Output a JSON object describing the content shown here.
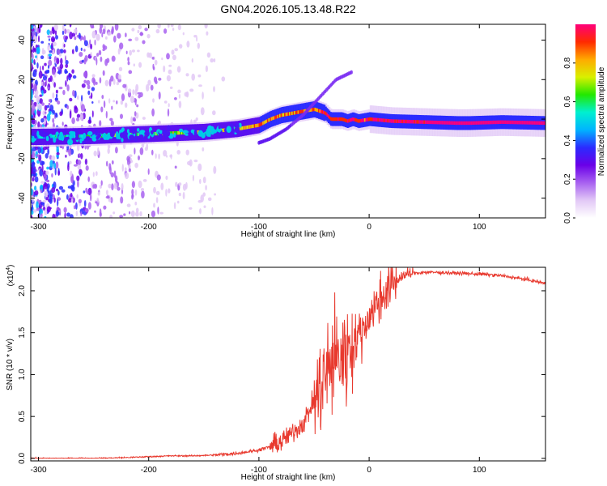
{
  "chart_data": [
    {
      "type": "heatmap",
      "title": "GN04.2026.105.13.48.R22",
      "xlabel": "Height of straight line (km)",
      "ylabel": "Frequency (Hz)",
      "xlim": [
        -307,
        160
      ],
      "ylim": [
        -50,
        48
      ],
      "xticks": [
        -300,
        -200,
        -100,
        0,
        100
      ],
      "xtick_labels": [
        "-300",
        "-200",
        "-100",
        "0",
        "100"
      ],
      "yticks": [
        -40,
        -20,
        0,
        20,
        40
      ],
      "ytick_labels": [
        "-40",
        "-20",
        "0",
        "20",
        "40"
      ],
      "ridge": {
        "description": "frequency centre of the main spectral band vs height",
        "x": [
          -300,
          -250,
          -200,
          -150,
          -120,
          -100,
          -90,
          -80,
          -70,
          -60,
          -50,
          -40,
          -35,
          -25,
          -20,
          -15,
          -10,
          0,
          20,
          50,
          80,
          90,
          120,
          160
        ],
        "y": [
          -9,
          -8.5,
          -7.5,
          -6.5,
          -5,
          -3,
          0,
          2,
          3,
          4,
          5,
          3,
          0,
          0,
          -1,
          0,
          -1,
          0,
          -1,
          -1.5,
          -2,
          -2,
          -1.5,
          -2
        ]
      },
      "secondary_branch": {
        "description": "weaker branch drifting from low to high frequency",
        "x": [
          -100,
          -90,
          -75,
          -60,
          -50,
          -40,
          -30,
          -15
        ],
        "y": [
          -12,
          -10,
          -5,
          2,
          8,
          14,
          20,
          24
        ]
      },
      "colorbar": {
        "label": "Normalized spectral amplitude",
        "range": [
          0,
          1
        ],
        "ticks": [
          0.0,
          0.2,
          0.4,
          0.6,
          0.8
        ],
        "tick_labels": [
          "0.0",
          "0.2",
          "0.4",
          "0.6",
          "0.8"
        ],
        "colors": [
          "#ffffff",
          "#e2c8f6",
          "#a861f0",
          "#6a00e8",
          "#2b2bff",
          "#00b4ff",
          "#00f0d0",
          "#22e800",
          "#d9f000",
          "#ffaa00",
          "#ff2a00",
          "#ff007a"
        ]
      }
    },
    {
      "type": "line",
      "title": "",
      "xlabel": "Height of straight line (km)",
      "ylabel": "SNR (10 * v/v)",
      "scale_label": "(x10",
      "scale_exponent": "4",
      "scale_close": ")",
      "xlim": [
        -307,
        160
      ],
      "ylim": [
        -0.03,
        2.28
      ],
      "xticks": [
        -300,
        -200,
        -100,
        0,
        100
      ],
      "xtick_labels": [
        "-300",
        "-200",
        "-100",
        "0",
        "100"
      ],
      "yticks": [
        0.0,
        0.5,
        1.0,
        1.5,
        2.0
      ],
      "ytick_labels": [
        "0.0",
        "0.5",
        "1.0",
        "1.5",
        "2.0"
      ],
      "series": [
        {
          "name": "SNR",
          "color": "#e8392e",
          "x": [
            -307,
            -280,
            -250,
            -220,
            -200,
            -180,
            -160,
            -140,
            -120,
            -100,
            -90,
            -80,
            -70,
            -60,
            -55,
            -50,
            -45,
            -40,
            -35,
            -30,
            -25,
            -20,
            -15,
            -10,
            -5,
            0,
            5,
            10,
            15,
            20,
            25,
            30,
            40,
            50,
            60,
            80,
            100,
            120,
            140,
            160
          ],
          "y": [
            0.0,
            0.0,
            0.0,
            0.01,
            0.02,
            0.03,
            0.03,
            0.04,
            0.06,
            0.1,
            0.14,
            0.2,
            0.3,
            0.42,
            0.55,
            0.68,
            0.82,
            0.98,
            1.1,
            1.22,
            1.18,
            1.28,
            1.38,
            1.45,
            1.55,
            1.7,
            1.8,
            1.9,
            2.0,
            2.05,
            2.12,
            2.18,
            2.21,
            2.22,
            2.22,
            2.21,
            2.2,
            2.18,
            2.14,
            2.09
          ]
        }
      ]
    }
  ]
}
